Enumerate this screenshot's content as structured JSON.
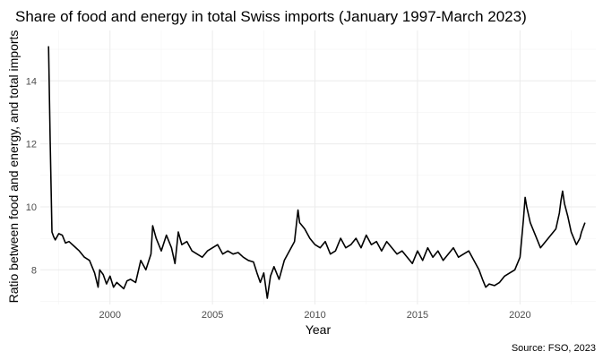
{
  "chart_data": {
    "type": "line",
    "title": "Share of food and energy in total Swiss imports (January 1997-March 2023)",
    "xlabel": "Year",
    "ylabel": "Ratio between food and energy, and total imports",
    "caption": "Source: FSO, 2023",
    "xlim": [
      1996.6,
      2023.7
    ],
    "ylim": [
      6.9,
      15.6
    ],
    "x_ticks": [
      2000,
      2005,
      2010,
      2015,
      2020
    ],
    "y_ticks": [
      8,
      10,
      12,
      14
    ],
    "grid": true,
    "series_color": "#000000",
    "series": [
      {
        "x": [
          1997.0,
          1997.08,
          1997.17,
          1997.25,
          1997.33,
          1997.5,
          1997.67,
          1997.83,
          1998.0,
          1998.25,
          1998.5,
          1998.75,
          1999.0,
          1999.25,
          1999.42,
          1999.5,
          1999.67,
          1999.83,
          2000.0,
          2000.17,
          2000.33,
          2000.5,
          2000.67,
          2000.83,
          2001.0,
          2001.25,
          2001.5,
          2001.75,
          2002.0,
          2002.08,
          2002.25,
          2002.5,
          2002.75,
          2003.0,
          2003.17,
          2003.33,
          2003.5,
          2003.75,
          2004.0,
          2004.25,
          2004.5,
          2004.75,
          2005.0,
          2005.25,
          2005.5,
          2005.75,
          2006.0,
          2006.25,
          2006.5,
          2006.75,
          2007.0,
          2007.17,
          2007.33,
          2007.5,
          2007.67,
          2007.83,
          2008.0,
          2008.25,
          2008.5,
          2008.75,
          2009.0,
          2009.17,
          2009.25,
          2009.5,
          2009.75,
          2010.0,
          2010.25,
          2010.5,
          2010.75,
          2011.0,
          2011.25,
          2011.5,
          2011.75,
          2012.0,
          2012.25,
          2012.5,
          2012.75,
          2013.0,
          2013.25,
          2013.5,
          2013.75,
          2014.0,
          2014.25,
          2014.5,
          2014.75,
          2015.0,
          2015.25,
          2015.5,
          2015.75,
          2016.0,
          2016.25,
          2016.5,
          2016.75,
          2017.0,
          2017.25,
          2017.5,
          2017.75,
          2018.0,
          2018.17,
          2018.33,
          2018.5,
          2018.75,
          2019.0,
          2019.25,
          2019.5,
          2019.75,
          2020.0,
          2020.17,
          2020.25,
          2020.33,
          2020.5,
          2020.75,
          2021.0,
          2021.25,
          2021.5,
          2021.75,
          2021.92,
          2022.0,
          2022.08,
          2022.17,
          2022.33,
          2022.5,
          2022.75,
          2022.92,
          2023.0,
          2023.17
        ],
        "y": [
          15.1,
          12.1,
          9.2,
          9.05,
          8.95,
          9.15,
          9.1,
          8.85,
          8.9,
          8.75,
          8.6,
          8.4,
          8.3,
          7.9,
          7.45,
          8.0,
          7.85,
          7.55,
          7.8,
          7.45,
          7.6,
          7.5,
          7.4,
          7.65,
          7.7,
          7.6,
          8.3,
          8.0,
          8.5,
          9.4,
          9.0,
          8.6,
          9.1,
          8.7,
          8.2,
          9.2,
          8.8,
          8.9,
          8.6,
          8.5,
          8.4,
          8.6,
          8.7,
          8.8,
          8.5,
          8.6,
          8.5,
          8.55,
          8.4,
          8.3,
          8.25,
          7.9,
          7.6,
          7.9,
          7.1,
          7.8,
          8.1,
          7.7,
          8.3,
          8.6,
          8.9,
          9.9,
          9.5,
          9.3,
          9.0,
          8.8,
          8.7,
          8.9,
          8.5,
          8.6,
          9.0,
          8.7,
          8.8,
          9.0,
          8.7,
          9.1,
          8.8,
          8.9,
          8.6,
          8.9,
          8.7,
          8.5,
          8.6,
          8.4,
          8.2,
          8.6,
          8.3,
          8.7,
          8.4,
          8.6,
          8.3,
          8.5,
          8.7,
          8.4,
          8.5,
          8.6,
          8.3,
          8.0,
          7.7,
          7.45,
          7.55,
          7.5,
          7.6,
          7.8,
          7.9,
          8.0,
          8.4,
          9.6,
          10.3,
          10.0,
          9.5,
          9.1,
          8.7,
          8.9,
          9.1,
          9.3,
          9.8,
          10.2,
          10.5,
          10.1,
          9.7,
          9.2,
          8.8,
          9.0,
          9.2,
          9.5
        ]
      }
    ]
  }
}
